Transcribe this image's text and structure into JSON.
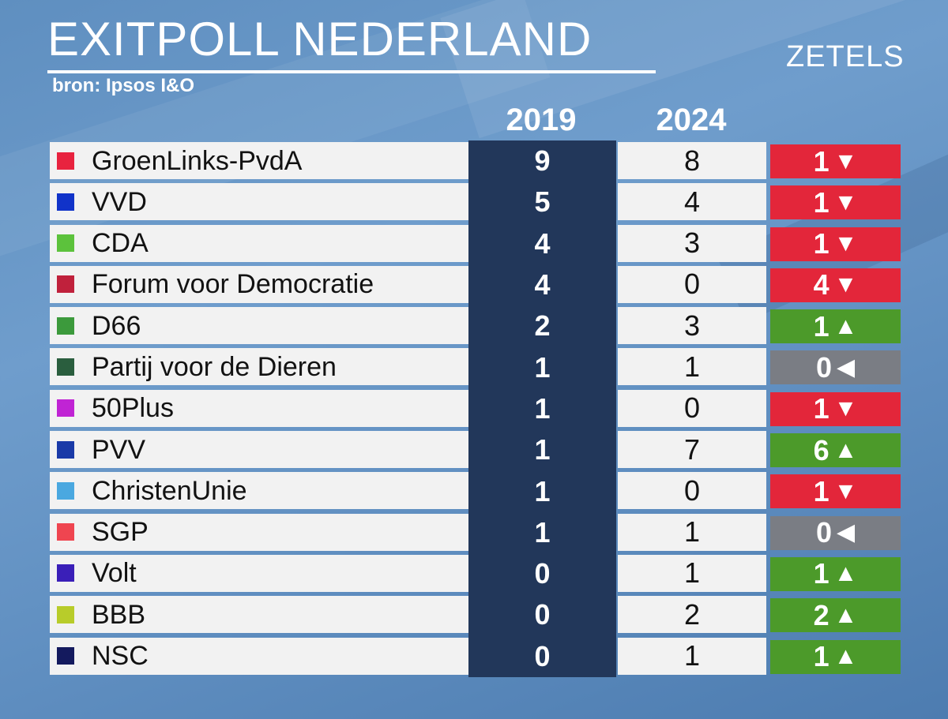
{
  "header": {
    "title": "EXITPOLL NEDERLAND",
    "source": "bron: Ipsos I&O",
    "seats_label": "ZETELS",
    "year_prev": "2019",
    "year_curr": "2024"
  },
  "rows": [
    {
      "party": "GroenLinks-PvdA",
      "color": "#e8233f",
      "seats_2019": "9",
      "seats_2024": "8",
      "change": "1",
      "trend": "down"
    },
    {
      "party": "VVD",
      "color": "#1133c9",
      "seats_2019": "5",
      "seats_2024": "4",
      "change": "1",
      "trend": "down"
    },
    {
      "party": "CDA",
      "color": "#5cc23c",
      "seats_2019": "4",
      "seats_2024": "3",
      "change": "1",
      "trend": "down"
    },
    {
      "party": "Forum voor Democratie",
      "color": "#c0213c",
      "seats_2019": "4",
      "seats_2024": "0",
      "change": "4",
      "trend": "down"
    },
    {
      "party": "D66",
      "color": "#3c9a3c",
      "seats_2019": "2",
      "seats_2024": "3",
      "change": "1",
      "trend": "up"
    },
    {
      "party": "Partij voor de Dieren",
      "color": "#2a5e3e",
      "seats_2019": "1",
      "seats_2024": "1",
      "change": "0",
      "trend": "same"
    },
    {
      "party": "50Plus",
      "color": "#c024d4",
      "seats_2019": "1",
      "seats_2024": "0",
      "change": "1",
      "trend": "down"
    },
    {
      "party": "PVV",
      "color": "#1a3aa8",
      "seats_2019": "1",
      "seats_2024": "7",
      "change": "6",
      "trend": "up"
    },
    {
      "party": "ChristenUnie",
      "color": "#4aa8e0",
      "seats_2019": "1",
      "seats_2024": "0",
      "change": "1",
      "trend": "down"
    },
    {
      "party": "SGP",
      "color": "#ef4550",
      "seats_2019": "1",
      "seats_2024": "1",
      "change": "0",
      "trend": "same"
    },
    {
      "party": "Volt",
      "color": "#3a1fb8",
      "seats_2019": "0",
      "seats_2024": "1",
      "change": "1",
      "trend": "up"
    },
    {
      "party": "BBB",
      "color": "#b8cc2a",
      "seats_2019": "0",
      "seats_2024": "2",
      "change": "2",
      "trend": "up"
    },
    {
      "party": "NSC",
      "color": "#141a5e",
      "seats_2019": "0",
      "seats_2024": "1",
      "change": "1",
      "trend": "up"
    }
  ],
  "trend_glyphs": {
    "down": "▼",
    "up": "▲",
    "same": "◀"
  },
  "theme": {
    "down": "#e3263a",
    "up": "#4c9a2a",
    "same": "#7a7d84",
    "prev_column": "#22375a"
  }
}
